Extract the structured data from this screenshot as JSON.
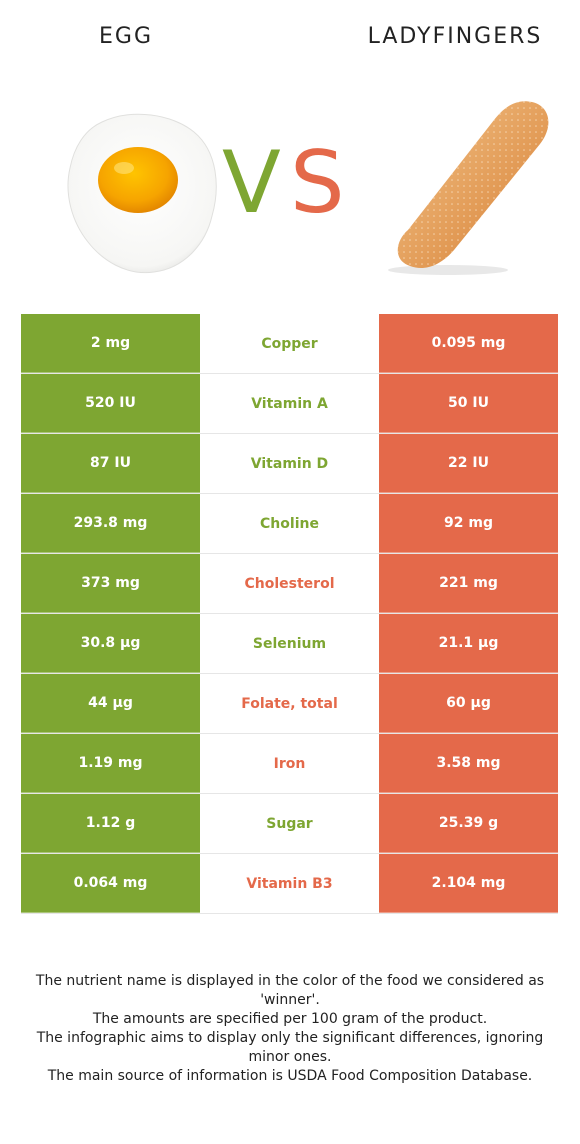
{
  "header": {
    "left_food": "EGG",
    "right_food": "LADYFINGERS",
    "vs_v": "V",
    "vs_s": "S"
  },
  "colors": {
    "left": "#7ea632",
    "right": "#e4694a"
  },
  "rows": [
    {
      "left": "2 mg",
      "nutrient": "Copper",
      "right": "0.095 mg",
      "winner": "left"
    },
    {
      "left": "520 IU",
      "nutrient": "Vitamin A",
      "right": "50 IU",
      "winner": "left"
    },
    {
      "left": "87 IU",
      "nutrient": "Vitamin D",
      "right": "22 IU",
      "winner": "left"
    },
    {
      "left": "293.8 mg",
      "nutrient": "Choline",
      "right": "92 mg",
      "winner": "left"
    },
    {
      "left": "373 mg",
      "nutrient": "Cholesterol",
      "right": "221 mg",
      "winner": "right"
    },
    {
      "left": "30.8 µg",
      "nutrient": "Selenium",
      "right": "21.1 µg",
      "winner": "left"
    },
    {
      "left": "44 µg",
      "nutrient": "Folate, total",
      "right": "60 µg",
      "winner": "right"
    },
    {
      "left": "1.19 mg",
      "nutrient": "Iron",
      "right": "3.58 mg",
      "winner": "right"
    },
    {
      "left": "1.12 g",
      "nutrient": "Sugar",
      "right": "25.39 g",
      "winner": "left"
    },
    {
      "left": "0.064 mg",
      "nutrient": "Vitamin B3",
      "right": "2.104 mg",
      "winner": "right"
    }
  ],
  "footnote": [
    "The nutrient name is displayed in the color of the food we considered as 'winner'.",
    "The amounts are specified per 100 gram of the product.",
    "The infographic aims to display only the significant differences, ignoring minor ones.",
    "The main source of information is USDA Food Composition Database."
  ]
}
